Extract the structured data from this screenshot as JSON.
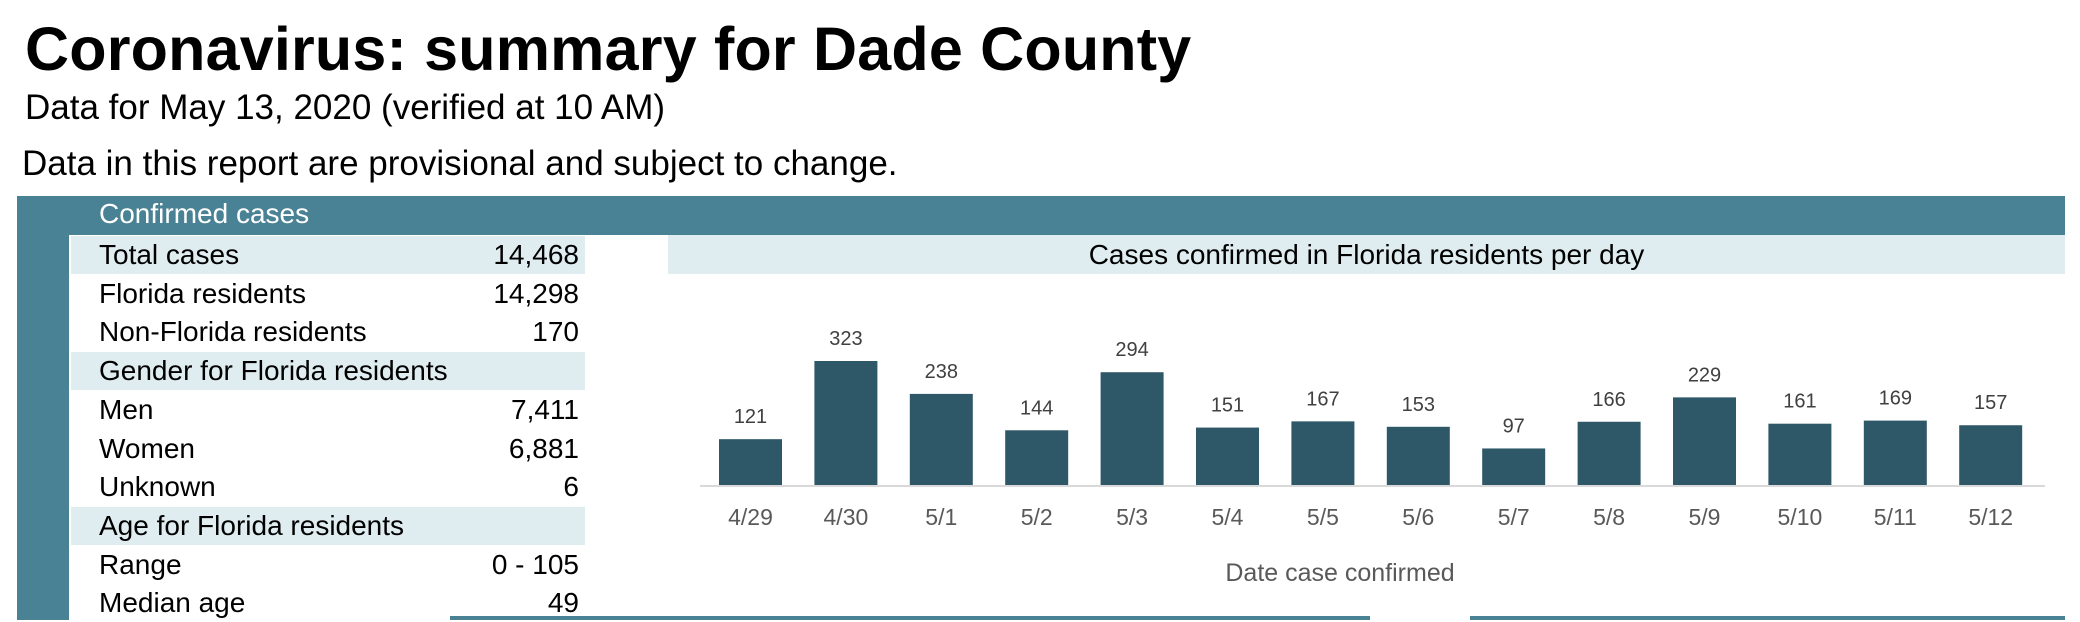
{
  "header": {
    "title": "Coronavirus: summary for Dade County",
    "subtitle": "Data for May 13, 2020 (verified at 10 AM)",
    "note": "Data in this report are provisional and subject to change."
  },
  "colors": {
    "accent": "#4a8295",
    "shade": "#dfecf0",
    "bar": "#2e5867"
  },
  "confirmed": {
    "section_label": "Confirmed cases",
    "rows": [
      {
        "label": "Total cases",
        "value": "14,468",
        "shaded": true
      },
      {
        "label": "Florida residents",
        "value": "14,298",
        "shaded": false
      },
      {
        "label": "Non-Florida residents",
        "value": "170",
        "shaded": false
      },
      {
        "label": "Gender for Florida residents",
        "value": "",
        "shaded": true
      },
      {
        "label": "Men",
        "value": "7,411",
        "shaded": false
      },
      {
        "label": "Women",
        "value": "6,881",
        "shaded": false
      },
      {
        "label": "Unknown",
        "value": "6",
        "shaded": false
      },
      {
        "label": "Age for Florida residents",
        "value": "",
        "shaded": true
      },
      {
        "label": "Range",
        "value": "0 - 105",
        "shaded": false
      },
      {
        "label": "Median age",
        "value": "49",
        "shaded": false
      }
    ]
  },
  "chart_data": {
    "type": "bar",
    "title": "Cases confirmed in Florida residents per day",
    "xlabel": "Date case confirmed",
    "ylabel": "",
    "categories": [
      "4/29",
      "4/30",
      "5/1",
      "5/2",
      "5/3",
      "5/4",
      "5/5",
      "5/6",
      "5/7",
      "5/8",
      "5/9",
      "5/10",
      "5/11",
      "5/12"
    ],
    "values": [
      121,
      323,
      238,
      144,
      294,
      151,
      167,
      153,
      97,
      166,
      229,
      161,
      169,
      157
    ],
    "data_labels": true,
    "grid": false,
    "legend": "none"
  }
}
